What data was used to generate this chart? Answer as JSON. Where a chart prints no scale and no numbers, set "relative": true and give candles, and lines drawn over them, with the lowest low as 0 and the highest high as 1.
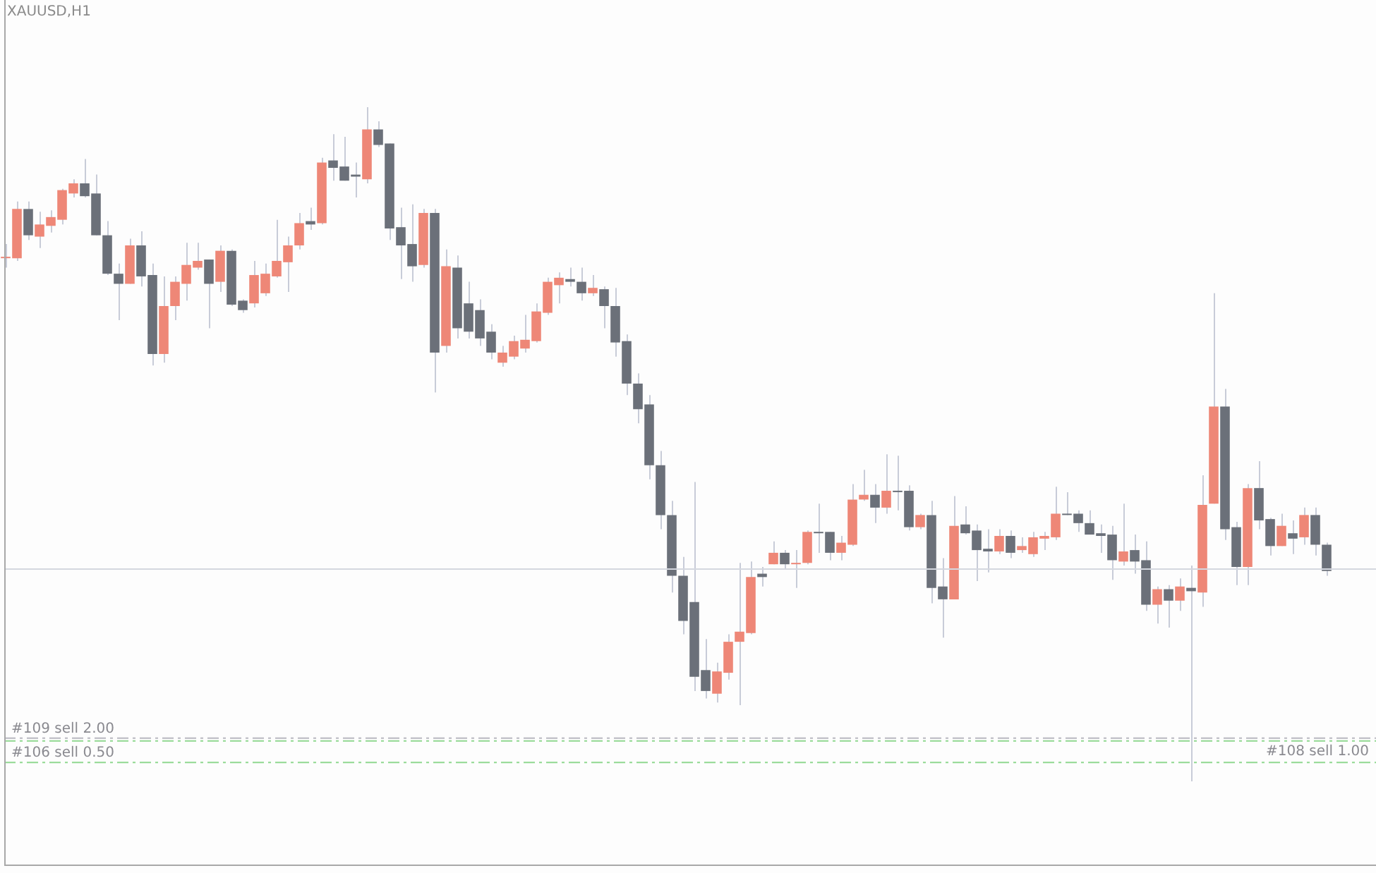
{
  "chart_data": {
    "type": "candlestick",
    "title": "XAUUSD,H1",
    "relative": true,
    "legend": false,
    "categories": [
      null,
      null,
      null,
      null,
      null,
      null,
      null,
      null,
      null,
      null,
      null,
      null,
      null,
      null,
      null,
      null,
      null,
      null,
      null,
      null,
      null,
      null,
      null,
      null,
      null,
      null,
      null,
      null,
      null,
      null,
      null,
      null,
      null,
      null,
      null,
      null,
      null,
      null,
      null,
      null,
      null,
      null,
      null,
      null,
      null,
      null,
      null,
      null,
      null,
      null,
      null,
      null,
      null,
      null,
      null,
      null,
      null,
      null,
      null,
      null,
      null,
      null,
      null,
      null,
      null,
      null,
      null,
      null,
      null,
      null,
      null,
      null,
      null,
      null,
      null,
      null,
      null,
      null,
      null,
      null,
      null,
      null,
      null,
      null,
      null,
      null,
      null,
      null,
      null,
      null,
      null,
      null,
      null,
      null,
      null,
      null,
      null,
      null,
      null,
      null,
      null,
      null,
      null,
      null,
      null,
      null,
      null,
      null,
      null,
      null,
      null,
      null,
      null,
      null,
      null,
      null,
      null,
      null
    ],
    "ohlc": [
      [
        0.776,
        0.797,
        0.762,
        0.778
      ],
      [
        0.776,
        0.86,
        0.772,
        0.849
      ],
      [
        0.849,
        0.86,
        0.803,
        0.81
      ],
      [
        0.808,
        0.845,
        0.791,
        0.826
      ],
      [
        0.824,
        0.847,
        0.814,
        0.837
      ],
      [
        0.833,
        0.879,
        0.826,
        0.877
      ],
      [
        0.872,
        0.893,
        0.866,
        0.887
      ],
      [
        0.887,
        0.923,
        0.866,
        0.868
      ],
      [
        0.872,
        0.9,
        0.81,
        0.81
      ],
      [
        0.81,
        0.831,
        0.751,
        0.753
      ],
      [
        0.753,
        0.768,
        0.684,
        0.738
      ],
      [
        0.738,
        0.805,
        0.738,
        0.795
      ],
      [
        0.795,
        0.816,
        0.734,
        0.749
      ],
      [
        0.751,
        0.768,
        0.617,
        0.634
      ],
      [
        0.634,
        0.749,
        0.621,
        0.705
      ],
      [
        0.705,
        0.749,
        0.684,
        0.741
      ],
      [
        0.738,
        0.799,
        0.713,
        0.766
      ],
      [
        0.762,
        0.799,
        0.759,
        0.772
      ],
      [
        0.774,
        0.774,
        0.672,
        0.738
      ],
      [
        0.741,
        0.795,
        0.726,
        0.787
      ],
      [
        0.787,
        0.789,
        0.705,
        0.707
      ],
      [
        0.713,
        0.715,
        0.695,
        0.699
      ],
      [
        0.709,
        0.772,
        0.703,
        0.751
      ],
      [
        0.724,
        0.768,
        0.72,
        0.753
      ],
      [
        0.749,
        0.833,
        0.747,
        0.772
      ],
      [
        0.77,
        0.808,
        0.726,
        0.795
      ],
      [
        0.795,
        0.843,
        0.789,
        0.828
      ],
      [
        0.831,
        0.851,
        0.818,
        0.826
      ],
      [
        0.828,
        0.925,
        0.826,
        0.918
      ],
      [
        0.921,
        0.96,
        0.891,
        0.91
      ],
      [
        0.912,
        0.956,
        0.891,
        0.891
      ],
      [
        0.9,
        0.918,
        0.866,
        0.897
      ],
      [
        0.893,
        1,
        0.887,
        0.967
      ],
      [
        0.967,
        0.979,
        0.941,
        0.944
      ],
      [
        0.946,
        0.946,
        0.803,
        0.82
      ],
      [
        0.822,
        0.851,
        0.745,
        0.795
      ],
      [
        0.797,
        0.856,
        0.741,
        0.764
      ],
      [
        0.766,
        0.849,
        0.762,
        0.843
      ],
      [
        0.843,
        0.849,
        0.577,
        0.636
      ],
      [
        0.646,
        0.789,
        0.636,
        0.764
      ],
      [
        0.762,
        0.78,
        0.657,
        0.672
      ],
      [
        0.709,
        0.741,
        0.657,
        0.667
      ],
      [
        0.699,
        0.715,
        0.646,
        0.657
      ],
      [
        0.667,
        0.678,
        0.626,
        0.636
      ],
      [
        0.621,
        0.646,
        0.615,
        0.636
      ],
      [
        0.63,
        0.661,
        0.626,
        0.653
      ],
      [
        0.642,
        0.692,
        0.636,
        0.655
      ],
      [
        0.653,
        0.709,
        0.651,
        0.697
      ],
      [
        0.695,
        0.747,
        0.692,
        0.741
      ],
      [
        0.736,
        0.755,
        0.709,
        0.747
      ],
      [
        0.745,
        0.762,
        0.734,
        0.741
      ],
      [
        0.741,
        0.762,
        0.713,
        0.724
      ],
      [
        0.724,
        0.751,
        0.72,
        0.732
      ],
      [
        0.73,
        0.734,
        0.672,
        0.705
      ],
      [
        0.705,
        0.732,
        0.63,
        0.651
      ],
      [
        0.653,
        0.663,
        0.573,
        0.59
      ],
      [
        0.59,
        0.605,
        0.531,
        0.552
      ],
      [
        0.559,
        0.573,
        0.448,
        0.469
      ],
      [
        0.469,
        0.49,
        0.374,
        0.395
      ],
      [
        0.395,
        0.416,
        0.28,
        0.305
      ],
      [
        0.305,
        0.333,
        0.218,
        0.238
      ],
      [
        0.266,
        0.444,
        0.134,
        0.155
      ],
      [
        0.165,
        0.211,
        0.123,
        0.134
      ],
      [
        0.13,
        0.176,
        0.117,
        0.163
      ],
      [
        0.161,
        0.218,
        0.151,
        0.207
      ],
      [
        0.207,
        0.324,
        0.113,
        0.222
      ],
      [
        0.22,
        0.326,
        0.218,
        0.303
      ],
      [
        0.308,
        0.318,
        0.289,
        0.303
      ],
      [
        0.322,
        0.356,
        0.322,
        0.339
      ],
      [
        0.339,
        0.343,
        0.314,
        0.322
      ],
      [
        0.322,
        0.343,
        0.287,
        0.324
      ],
      [
        0.324,
        0.372,
        0.322,
        0.37
      ],
      [
        0.37,
        0.412,
        0.339,
        0.368
      ],
      [
        0.37,
        0.37,
        0.328,
        0.339
      ],
      [
        0.339,
        0.364,
        0.328,
        0.354
      ],
      [
        0.351,
        0.441,
        0.349,
        0.418
      ],
      [
        0.418,
        0.462,
        0.416,
        0.425
      ],
      [
        0.425,
        0.441,
        0.383,
        0.406
      ],
      [
        0.406,
        0.485,
        0.397,
        0.431
      ],
      [
        0.431,
        0.483,
        0.402,
        0.429
      ],
      [
        0.431,
        0.439,
        0.372,
        0.377
      ],
      [
        0.377,
        0.397,
        0.374,
        0.395
      ],
      [
        0.395,
        0.416,
        0.264,
        0.287
      ],
      [
        0.289,
        0.331,
        0.213,
        0.27
      ],
      [
        0.27,
        0.423,
        0.27,
        0.379
      ],
      [
        0.381,
        0.408,
        0.366,
        0.368
      ],
      [
        0.372,
        0.381,
        0.297,
        0.343
      ],
      [
        0.345,
        0.374,
        0.31,
        0.341
      ],
      [
        0.341,
        0.374,
        0.337,
        0.364
      ],
      [
        0.364,
        0.372,
        0.331,
        0.339
      ],
      [
        0.343,
        0.362,
        0.339,
        0.349
      ],
      [
        0.337,
        0.37,
        0.333,
        0.362
      ],
      [
        0.36,
        0.37,
        0.343,
        0.364
      ],
      [
        0.362,
        0.437,
        0.358,
        0.397
      ],
      [
        0.397,
        0.429,
        0.395,
        0.395
      ],
      [
        0.397,
        0.402,
        0.37,
        0.383
      ],
      [
        0.383,
        0.402,
        0.366,
        0.366
      ],
      [
        0.368,
        0.381,
        0.339,
        0.364
      ],
      [
        0.366,
        0.379,
        0.299,
        0.328
      ],
      [
        0.326,
        0.412,
        0.32,
        0.341
      ],
      [
        0.343,
        0.366,
        0.308,
        0.326
      ],
      [
        0.328,
        0.356,
        0.253,
        0.262
      ],
      [
        0.262,
        0.289,
        0.234,
        0.285
      ],
      [
        0.285,
        0.291,
        0.228,
        0.268
      ],
      [
        0.268,
        0.301,
        0.253,
        0.289
      ],
      [
        0.287,
        0.32,
        0,
        0.282
      ],
      [
        0.28,
        0.454,
        0.259,
        0.41
      ],
      [
        0.412,
        0.724,
        0.412,
        0.556
      ],
      [
        0.556,
        0.582,
        0.358,
        0.374
      ],
      [
        0.377,
        0.385,
        0.291,
        0.318
      ],
      [
        0.318,
        0.441,
        0.291,
        0.435
      ],
      [
        0.435,
        0.475,
        0.374,
        0.387
      ],
      [
        0.389,
        0.391,
        0.335,
        0.349
      ],
      [
        0.349,
        0.397,
        0.349,
        0.379
      ],
      [
        0.368,
        0.387,
        0.337,
        0.36
      ],
      [
        0.362,
        0.406,
        0.351,
        0.395
      ],
      [
        0.395,
        0.406,
        0.335,
        0.351
      ],
      [
        0.351,
        0.354,
        0.305,
        0.312
      ]
    ],
    "colors": [
      "#ee8777",
      "#ee8777",
      "#6b7079",
      "#ee8777",
      "#ee8777",
      "#ee8777",
      "#ee8777",
      "#6b7079",
      "#6b7079",
      "#6b7079",
      "#6b7079",
      "#ee8777",
      "#6b7079",
      "#6b7079",
      "#ee8777",
      "#ee8777",
      "#ee8777",
      "#ee8777",
      "#6b7079",
      "#ee8777",
      "#6b7079",
      "#6b7079",
      "#ee8777",
      "#ee8777",
      "#ee8777",
      "#ee8777",
      "#ee8777",
      "#6b7079",
      "#ee8777",
      "#6b7079",
      "#6b7079",
      "#6b7079",
      "#ee8777",
      "#6b7079",
      "#6b7079",
      "#6b7079",
      "#6b7079",
      "#ee8777",
      "#6b7079",
      "#ee8777",
      "#6b7079",
      "#6b7079",
      "#6b7079",
      "#6b7079",
      "#ee8777",
      "#ee8777",
      "#ee8777",
      "#ee8777",
      "#ee8777",
      "#ee8777",
      "#6b7079",
      "#6b7079",
      "#ee8777",
      "#6b7079",
      "#6b7079",
      "#6b7079",
      "#6b7079",
      "#6b7079",
      "#6b7079",
      "#6b7079",
      "#6b7079",
      "#6b7079",
      "#6b7079",
      "#ee8777",
      "#ee8777",
      "#ee8777",
      "#ee8777",
      "#6b7079",
      "#ee8777",
      "#6b7079",
      "#ee8777",
      "#ee8777",
      "#6b7079",
      "#6b7079",
      "#ee8777",
      "#ee8777",
      "#ee8777",
      "#6b7079",
      "#ee8777",
      "#6b7079",
      "#6b7079",
      "#ee8777",
      "#6b7079",
      "#6b7079",
      "#ee8777",
      "#6b7079",
      "#6b7079",
      "#6b7079",
      "#ee8777",
      "#6b7079",
      "#ee8777",
      "#ee8777",
      "#ee8777",
      "#ee8777",
      "#6b7079",
      "#6b7079",
      "#6b7079",
      "#6b7079",
      "#6b7079",
      "#ee8777",
      "#6b7079",
      "#6b7079",
      "#ee8777",
      "#6b7079",
      "#ee8777",
      "#6b7079",
      "#ee8777",
      "#ee8777",
      "#6b7079",
      "#6b7079",
      "#ee8777",
      "#6b7079",
      "#6b7079",
      "#ee8777",
      "#6b7079",
      "#ee8777",
      "#6b7079",
      "#6b7079"
    ],
    "ref_lines": [
      {
        "axis": "y",
        "value": 0.065,
        "label": "#109 sell 2.00",
        "color": "#b8b8c0",
        "line_style": "dashed"
      },
      {
        "axis": "y",
        "value": 0.061,
        "label": "#108 sell 1.00",
        "color": "#90d890",
        "line_style": "dashed"
      },
      {
        "axis": "y",
        "value": 0.029,
        "label": "#106 sell 0.50",
        "color": "#90d890",
        "line_style": "dashed"
      },
      {
        "axis": "y",
        "value": 0.316,
        "color": "#d4d7df",
        "line_style": "solid"
      }
    ]
  }
}
